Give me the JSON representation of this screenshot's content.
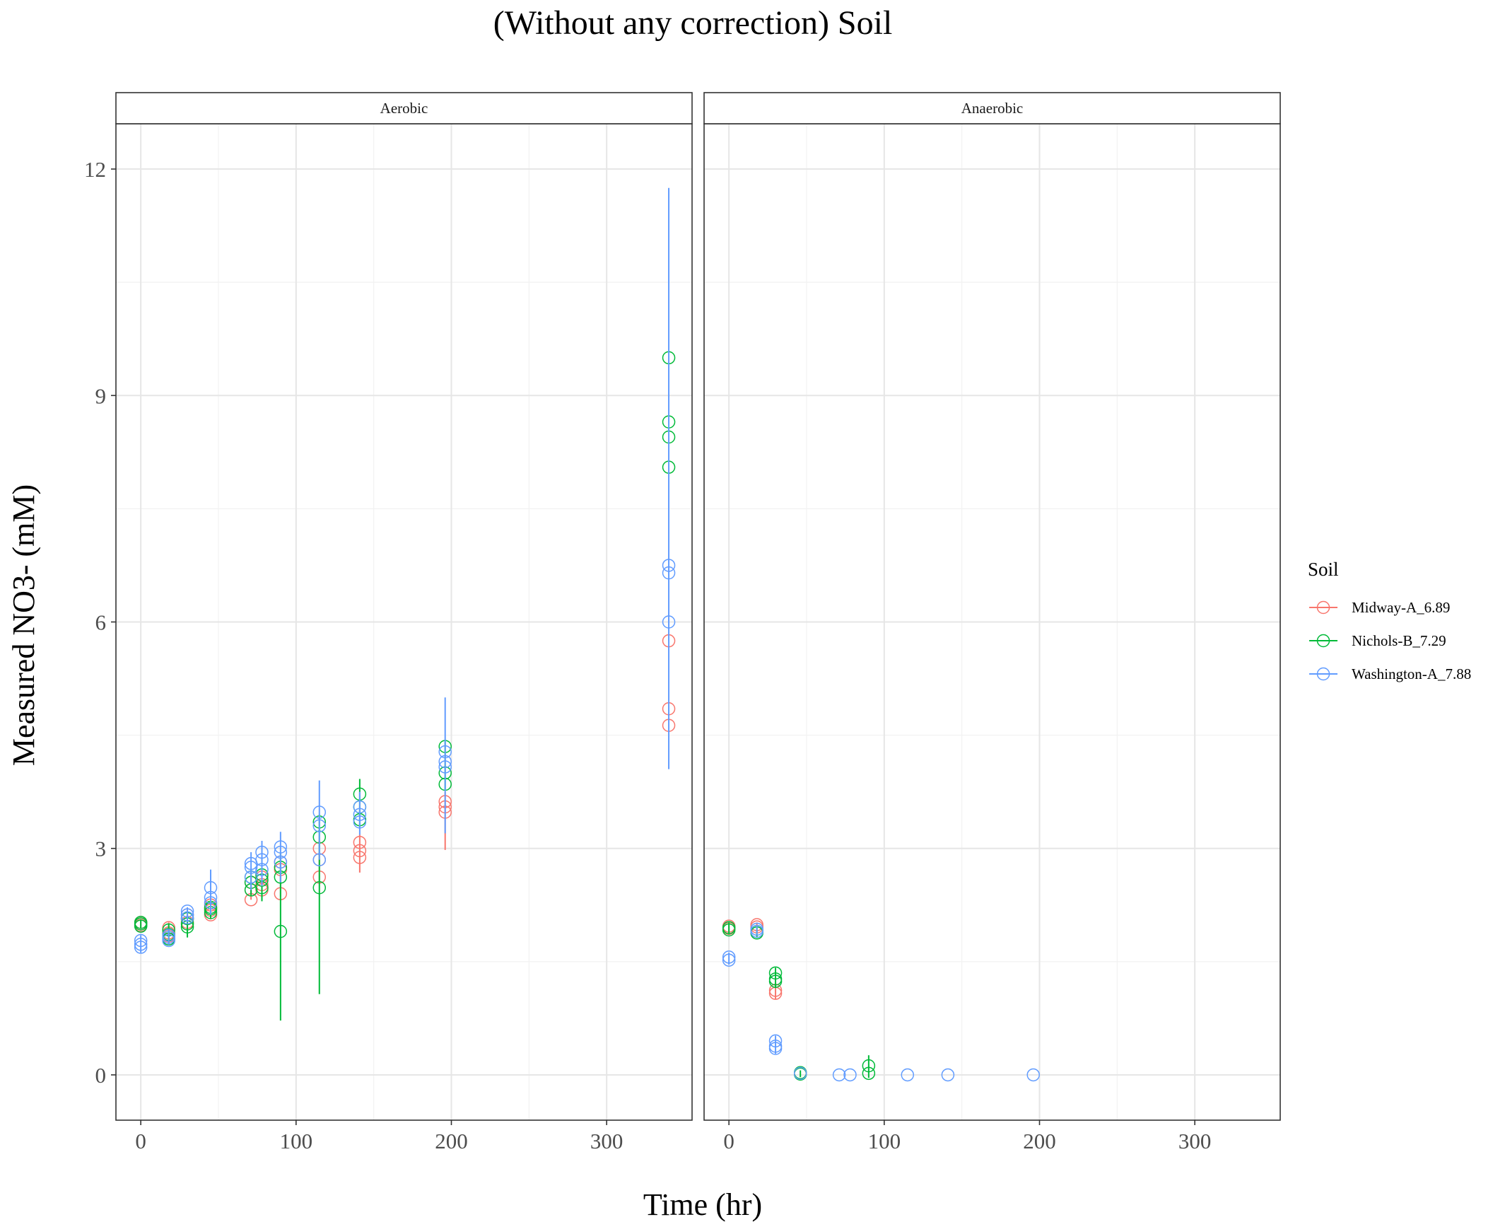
{
  "chart_data": {
    "type": "scatter",
    "title": "(Without any correction) Soil",
    "xlabel": "Time (hr)",
    "ylabel": "Measured NO3- (mM)",
    "xlim": [
      -16,
      355
    ],
    "ylim": [
      -0.6,
      12.6
    ],
    "x_ticks": [
      0,
      100,
      200,
      300
    ],
    "y_ticks": [
      0,
      3,
      6,
      9,
      12
    ],
    "grid": true,
    "legend": {
      "title": "Soil",
      "position": "right",
      "entries": [
        {
          "name": "Midway-A_6.89",
          "color": "#F8766D"
        },
        {
          "name": "Nichols-B_7.29",
          "color": "#00BA38"
        },
        {
          "name": "Washington-A_7.88",
          "color": "#619CFF"
        }
      ]
    },
    "panels": [
      {
        "label": "Aerobic",
        "series": [
          {
            "name": "Midway-A_6.89",
            "color": "#F8766D",
            "points": [
              [
                0,
                2.02
              ],
              [
                0,
                2.0
              ],
              [
                0,
                1.98
              ],
              [
                18,
                1.95
              ],
              [
                18,
                1.88
              ],
              [
                18,
                1.84
              ],
              [
                30,
                2.12
              ],
              [
                30,
                2.07
              ],
              [
                30,
                2.02
              ],
              [
                45,
                2.25
              ],
              [
                45,
                2.18
              ],
              [
                45,
                2.12
              ],
              [
                71,
                2.55
              ],
              [
                71,
                2.45
              ],
              [
                71,
                2.32
              ],
              [
                78,
                2.62
              ],
              [
                78,
                2.52
              ],
              [
                78,
                2.45
              ],
              [
                90,
                2.82
              ],
              [
                90,
                2.72
              ],
              [
                90,
                2.4
              ],
              [
                115,
                3.0
              ],
              [
                115,
                2.85
              ],
              [
                115,
                2.62
              ],
              [
                141,
                3.08
              ],
              [
                141,
                2.97
              ],
              [
                141,
                2.88
              ],
              [
                196,
                3.62
              ],
              [
                196,
                3.55
              ],
              [
                196,
                3.48
              ],
              [
                340,
                5.75
              ],
              [
                340,
                4.85
              ],
              [
                340,
                4.63
              ]
            ],
            "errorbars": [
              [
                0,
                1.94,
                2.06
              ],
              [
                18,
                1.78,
                2.02
              ],
              [
                30,
                1.96,
                2.18
              ],
              [
                45,
                2.06,
                2.3
              ],
              [
                71,
                2.32,
                2.66
              ],
              [
                78,
                2.38,
                2.7
              ],
              [
                90,
                2.36,
                2.9
              ],
              [
                115,
                2.56,
                3.1
              ],
              [
                141,
                2.68,
                3.18
              ],
              [
                196,
                2.98,
                3.75
              ]
            ]
          },
          {
            "name": "Nichols-B_7.29",
            "color": "#00BA38",
            "points": [
              [
                0,
                2.02
              ],
              [
                0,
                2.0
              ],
              [
                0,
                1.97
              ],
              [
                18,
                1.92
              ],
              [
                18,
                1.86
              ],
              [
                18,
                1.8
              ],
              [
                30,
                2.07
              ],
              [
                30,
                2.0
              ],
              [
                30,
                1.96
              ],
              [
                45,
                2.22
              ],
              [
                45,
                2.2
              ],
              [
                45,
                2.15
              ],
              [
                71,
                2.62
              ],
              [
                71,
                2.55
              ],
              [
                71,
                2.45
              ],
              [
                78,
                2.65
              ],
              [
                78,
                2.58
              ],
              [
                78,
                2.48
              ],
              [
                90,
                2.75
              ],
              [
                90,
                2.62
              ],
              [
                90,
                1.9
              ],
              [
                115,
                3.35
              ],
              [
                115,
                3.15
              ],
              [
                115,
                2.48
              ],
              [
                141,
                3.72
              ],
              [
                141,
                3.55
              ],
              [
                141,
                3.38
              ],
              [
                196,
                4.35
              ],
              [
                196,
                4.0
              ],
              [
                196,
                3.85
              ],
              [
                340,
                9.5
              ],
              [
                340,
                8.65
              ],
              [
                340,
                8.45
              ],
              [
                340,
                8.05
              ]
            ],
            "errorbars": [
              [
                0,
                1.94,
                2.06
              ],
              [
                18,
                1.72,
                2.0
              ],
              [
                30,
                1.82,
                2.14
              ],
              [
                45,
                2.08,
                2.3
              ],
              [
                71,
                2.38,
                2.72
              ],
              [
                78,
                2.3,
                2.75
              ],
              [
                90,
                0.72,
                2.95
              ],
              [
                115,
                1.07,
                3.45
              ],
              [
                141,
                3.28,
                3.92
              ],
              [
                196,
                3.78,
                4.42
              ]
            ]
          },
          {
            "name": "Washington-A_7.88",
            "color": "#619CFF",
            "points": [
              [
                0,
                1.78
              ],
              [
                0,
                1.73
              ],
              [
                0,
                1.69
              ],
              [
                18,
                1.85
              ],
              [
                18,
                1.82
              ],
              [
                18,
                1.78
              ],
              [
                30,
                2.17
              ],
              [
                30,
                2.12
              ],
              [
                30,
                2.08
              ],
              [
                45,
                2.48
              ],
              [
                45,
                2.35
              ],
              [
                45,
                2.28
              ],
              [
                71,
                2.8
              ],
              [
                71,
                2.75
              ],
              [
                71,
                2.62
              ],
              [
                78,
                2.95
              ],
              [
                78,
                2.85
              ],
              [
                78,
                2.72
              ],
              [
                90,
                3.02
              ],
              [
                90,
                2.95
              ],
              [
                90,
                2.82
              ],
              [
                115,
                3.48
              ],
              [
                115,
                3.3
              ],
              [
                115,
                2.85
              ],
              [
                141,
                3.55
              ],
              [
                141,
                3.45
              ],
              [
                141,
                3.35
              ],
              [
                196,
                4.28
              ],
              [
                196,
                4.15
              ],
              [
                196,
                4.08
              ],
              [
                340,
                6.75
              ],
              [
                340,
                6.65
              ],
              [
                340,
                6.0
              ]
            ],
            "errorbars": [
              [
                0,
                1.62,
                1.85
              ],
              [
                18,
                1.72,
                1.92
              ],
              [
                30,
                2.02,
                2.22
              ],
              [
                45,
                2.12,
                2.72
              ],
              [
                71,
                2.45,
                2.95
              ],
              [
                78,
                2.5,
                3.1
              ],
              [
                90,
                2.55,
                3.22
              ],
              [
                115,
                2.85,
                3.9
              ],
              [
                141,
                3.18,
                3.75
              ],
              [
                196,
                3.2,
                5.0
              ],
              [
                340,
                4.05,
                11.75
              ]
            ]
          }
        ]
      },
      {
        "label": "Anaerobic",
        "series": [
          {
            "name": "Midway-A_6.89",
            "color": "#F8766D",
            "points": [
              [
                0,
                1.97
              ],
              [
                0,
                1.94
              ],
              [
                18,
                1.99
              ],
              [
                18,
                1.96
              ],
              [
                30,
                1.12
              ],
              [
                30,
                1.08
              ],
              [
                46,
                0.02
              ]
            ],
            "errorbars": [
              [
                0,
                1.9,
                2.01
              ],
              [
                18,
                1.93,
                2.02
              ],
              [
                30,
                1.0,
                1.2
              ]
            ]
          },
          {
            "name": "Nichols-B_7.29",
            "color": "#00BA38",
            "points": [
              [
                0,
                1.95
              ],
              [
                0,
                1.92
              ],
              [
                18,
                1.9
              ],
              [
                18,
                1.88
              ],
              [
                30,
                1.35
              ],
              [
                30,
                1.27
              ],
              [
                30,
                1.24
              ],
              [
                46,
                0.03
              ],
              [
                46,
                0.01
              ],
              [
                90,
                0.12
              ],
              [
                90,
                0.02
              ]
            ],
            "errorbars": [
              [
                0,
                1.86,
                2.02
              ],
              [
                18,
                1.83,
                1.95
              ],
              [
                30,
                1.15,
                1.42
              ],
              [
                46,
                -0.03,
                0.06
              ],
              [
                90,
                -0.04,
                0.26
              ]
            ]
          },
          {
            "name": "Washington-A_7.88",
            "color": "#619CFF",
            "points": [
              [
                0,
                1.56
              ],
              [
                0,
                1.52
              ],
              [
                18,
                1.93
              ],
              [
                18,
                1.9
              ],
              [
                30,
                0.45
              ],
              [
                30,
                0.38
              ],
              [
                30,
                0.35
              ],
              [
                46,
                0.02
              ],
              [
                71,
                0.0
              ],
              [
                78,
                0.0
              ],
              [
                115,
                0.0
              ],
              [
                141,
                0.0
              ],
              [
                196,
                0.0
              ]
            ],
            "errorbars": [
              [
                0,
                1.46,
                1.62
              ],
              [
                18,
                1.86,
                1.97
              ],
              [
                30,
                0.28,
                0.52
              ]
            ]
          }
        ]
      }
    ]
  }
}
